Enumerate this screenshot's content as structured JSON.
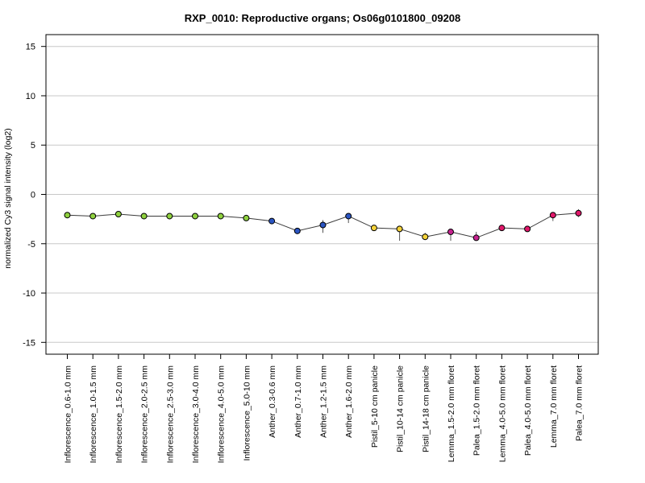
{
  "chart_data": {
    "type": "line",
    "title": "RXP_0010: Reproductive organs; Os06g0101800_09208",
    "ylabel": "normalized Cy3 signal intensity (log2)",
    "xlabel": "",
    "ylim": [
      -16.2,
      16.2
    ],
    "yticks": [
      15,
      10,
      5,
      0,
      -5,
      -10,
      -15
    ],
    "grid": "horizontal",
    "categories": [
      "Inflorescence_0.6-1.0 mm",
      "Inflorescence_1.0-1.5 mm",
      "Inflorescence_1.5-2.0 mm",
      "Inflorescence_2.0-2.5 mm",
      "Inflorescence_2.5-3.0 mm",
      "Inflorescence_3.0-4.0 mm",
      "Inflorescence_4.0-5.0 mm",
      "Inflorescence_5.0-10 mm",
      "Anther_0.3-0.6 mm",
      "Anther_0.7-1.0 mm",
      "Anther_1.2-1.5 mm",
      "Anther_1.6-2.0 mm",
      "Pistil_5-10 cm panicle",
      "Pistil_10-14 cm panicle",
      "Pistil_14-18 cm panicle",
      "Lemma_1.5-2.0 mm floret",
      "Palea_1.5-2.0 mm floret",
      "Lemma_4.0-5.0 mm floret",
      "Palea_4.0-5.0 mm floret",
      "Lemma_7.0 mm floret",
      "Palea_7.0 mm floret"
    ],
    "series": [
      {
        "values": [
          -2.1,
          -2.2,
          -2.0,
          -2.2,
          -2.2,
          -2.2,
          -2.2,
          -2.4,
          -2.7,
          -3.7,
          -3.1,
          -2.2,
          -3.4,
          -3.5,
          -4.3,
          -3.8,
          -4.4,
          -3.4,
          -3.5,
          -2.1,
          -1.9
        ],
        "err_low": [
          -2.2,
          -2.3,
          -2.1,
          -2.3,
          -2.3,
          -2.3,
          -2.3,
          -2.5,
          -2.8,
          -3.8,
          -3.9,
          -2.9,
          -3.6,
          -4.7,
          -4.6,
          -4.7,
          -4.6,
          -3.5,
          -3.6,
          -2.7,
          -2.3
        ],
        "err_high": [
          -1.9,
          -2.0,
          -1.8,
          -2.0,
          -2.0,
          -2.0,
          -2.0,
          -2.2,
          -2.5,
          -3.5,
          -2.6,
          -1.9,
          -3.1,
          -3.3,
          -3.9,
          -3.6,
          -3.8,
          -3.3,
          -3.4,
          -1.9,
          -1.5
        ],
        "colors": [
          "#8fd13f",
          "#8fd13f",
          "#8fd13f",
          "#8fd13f",
          "#8fd13f",
          "#8fd13f",
          "#8fd13f",
          "#8fd13f",
          "#2b55c2",
          "#2b55c2",
          "#2b55c2",
          "#2b55c2",
          "#f5d33a",
          "#f5d33a",
          "#f5d33a",
          "#c6228f",
          "#c6228f",
          "#e0186a",
          "#e0186a",
          "#e0186a",
          "#e0186a"
        ]
      }
    ]
  }
}
